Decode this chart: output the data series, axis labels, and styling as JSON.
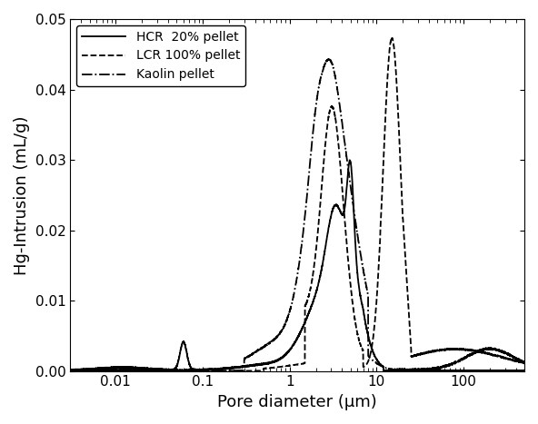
{
  "title": "",
  "xlabel": "Pore diameter (μm)",
  "ylabel": "Hg-Intrusion (mL/g)",
  "xlim": [
    0.003,
    500
  ],
  "ylim": [
    0,
    0.05
  ],
  "yticks": [
    0,
    0.01,
    0.02,
    0.03,
    0.04,
    0.05
  ],
  "legend": [
    {
      "label": "HCR  20% pellet",
      "linestyle": "solid",
      "color": "#000000",
      "linewidth": 1.3
    },
    {
      "label": "LCR 100% pellet",
      "linestyle": "dashed",
      "color": "#000000",
      "linewidth": 1.3
    },
    {
      "label": "Kaolin pellet",
      "linestyle": "dashdot",
      "color": "#000000",
      "linewidth": 1.3
    }
  ],
  "background_color": "#ffffff",
  "figure_size": [
    5.92,
    4.67
  ],
  "dpi": 100
}
